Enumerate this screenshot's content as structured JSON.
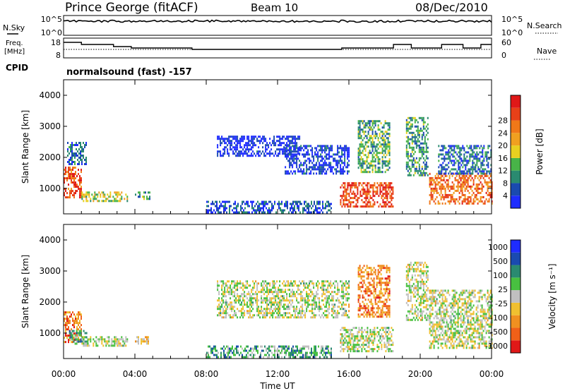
{
  "header": {
    "station": "Prince George (fitACF)",
    "beam": "Beam 10",
    "date": "08/Dec/2010"
  },
  "noise_panel": {
    "left_label": "N.Sky",
    "left_ticks": [
      "10^5",
      "10^0"
    ],
    "right_label": "N.Search",
    "right_ticks": [
      "10^5",
      "10^0"
    ]
  },
  "freq_panel": {
    "left_label_1": "Freq.",
    "left_label_2": "[MHz]",
    "left_ticks": [
      "18",
      "8"
    ],
    "right_label": "Nave",
    "right_ticks": [
      "60",
      "0"
    ]
  },
  "cpid": {
    "label": "CPID",
    "program": "normalsound (fast) -157"
  },
  "chart_data": [
    {
      "type": "heatmap",
      "name": "Power",
      "ylabel": "Slant Range [km]",
      "ylim": [
        180,
        4500
      ],
      "yticks": [
        1000,
        2000,
        3000,
        4000
      ],
      "x_unit": "hours UT",
      "xlim": [
        0,
        24
      ],
      "colorbar_label": "Power [dB]",
      "colorbar_ticks": [
        "4",
        "8",
        "12",
        "16",
        "20",
        "24",
        "28"
      ],
      "colorbar_colors": [
        "#1e2cff",
        "#1a4ab0",
        "#2a8a70",
        "#48b448",
        "#e8d020",
        "#f0a020",
        "#f07818",
        "#e84018",
        "#e01818"
      ],
      "regions": [
        {
          "t0": 0.0,
          "t1": 1.0,
          "r0": 700,
          "r1": 1700,
          "level": 0.8
        },
        {
          "t0": 0.2,
          "t1": 1.3,
          "r0": 1800,
          "r1": 2500,
          "level": 0.2
        },
        {
          "t0": 1.0,
          "t1": 3.6,
          "r0": 600,
          "r1": 900,
          "level": 0.45
        },
        {
          "t0": 4.0,
          "t1": 4.8,
          "r0": 650,
          "r1": 900,
          "level": 0.3
        },
        {
          "t0": 8.6,
          "t1": 13.2,
          "r0": 2050,
          "r1": 2700,
          "level": 0.05
        },
        {
          "t0": 12.4,
          "t1": 16.0,
          "r0": 1500,
          "r1": 2400,
          "level": 0.1
        },
        {
          "t0": 8.0,
          "t1": 15.0,
          "r0": 200,
          "r1": 600,
          "level": 0.15
        },
        {
          "t0": 15.5,
          "t1": 18.5,
          "r0": 400,
          "r1": 1200,
          "level": 0.85
        },
        {
          "t0": 16.5,
          "t1": 18.3,
          "r0": 1500,
          "r1": 3200,
          "level": 0.35
        },
        {
          "t0": 19.2,
          "t1": 20.4,
          "r0": 1400,
          "r1": 3300,
          "level": 0.3
        },
        {
          "t0": 20.5,
          "t1": 24.0,
          "r0": 500,
          "r1": 1500,
          "level": 0.75
        },
        {
          "t0": 21.0,
          "t1": 24.0,
          "r0": 1500,
          "r1": 2400,
          "level": 0.2
        }
      ]
    },
    {
      "type": "heatmap",
      "name": "Velocity",
      "ylabel": "Slant Range [km]",
      "ylim": [
        180,
        4500
      ],
      "yticks": [
        1000,
        2000,
        3000,
        4000
      ],
      "x_unit": "hours UT",
      "xlim": [
        0,
        24
      ],
      "xlabel": "Time UT",
      "xticks": [
        "00:00",
        "04:00",
        "08:00",
        "12:00",
        "16:00",
        "20:00",
        "00:00"
      ],
      "colorbar_label": "Velocity [m s⁻¹]",
      "colorbar_ticks": [
        "1000",
        "500",
        "100",
        "25",
        "-25",
        "-100",
        "-500",
        "-1000"
      ],
      "colorbar_colors": [
        "#1e2cff",
        "#1a4ab0",
        "#2a8a70",
        "#48c040",
        "#c0c0c0",
        "#f0c030",
        "#f09020",
        "#f06018",
        "#e01818"
      ],
      "regions": [
        {
          "t0": 0.0,
          "t1": 1.0,
          "r0": 700,
          "r1": 1700,
          "level": 0.78
        },
        {
          "t0": 0.3,
          "t1": 1.4,
          "r0": 650,
          "r1": 1100,
          "level": 0.35
        },
        {
          "t0": 1.0,
          "t1": 3.6,
          "r0": 600,
          "r1": 900,
          "level": 0.5
        },
        {
          "t0": 4.0,
          "t1": 4.8,
          "r0": 650,
          "r1": 900,
          "level": 0.6
        },
        {
          "t0": 8.6,
          "t1": 16.0,
          "r0": 1500,
          "r1": 2700,
          "level": 0.5
        },
        {
          "t0": 8.0,
          "t1": 15.0,
          "r0": 200,
          "r1": 600,
          "level": 0.35
        },
        {
          "t0": 15.5,
          "t1": 18.5,
          "r0": 400,
          "r1": 1200,
          "level": 0.5
        },
        {
          "t0": 16.5,
          "t1": 18.3,
          "r0": 1500,
          "r1": 3200,
          "level": 0.75
        },
        {
          "t0": 19.2,
          "t1": 20.4,
          "r0": 1400,
          "r1": 3300,
          "level": 0.5
        },
        {
          "t0": 20.5,
          "t1": 24.0,
          "r0": 500,
          "r1": 2400,
          "level": 0.5
        }
      ]
    }
  ]
}
